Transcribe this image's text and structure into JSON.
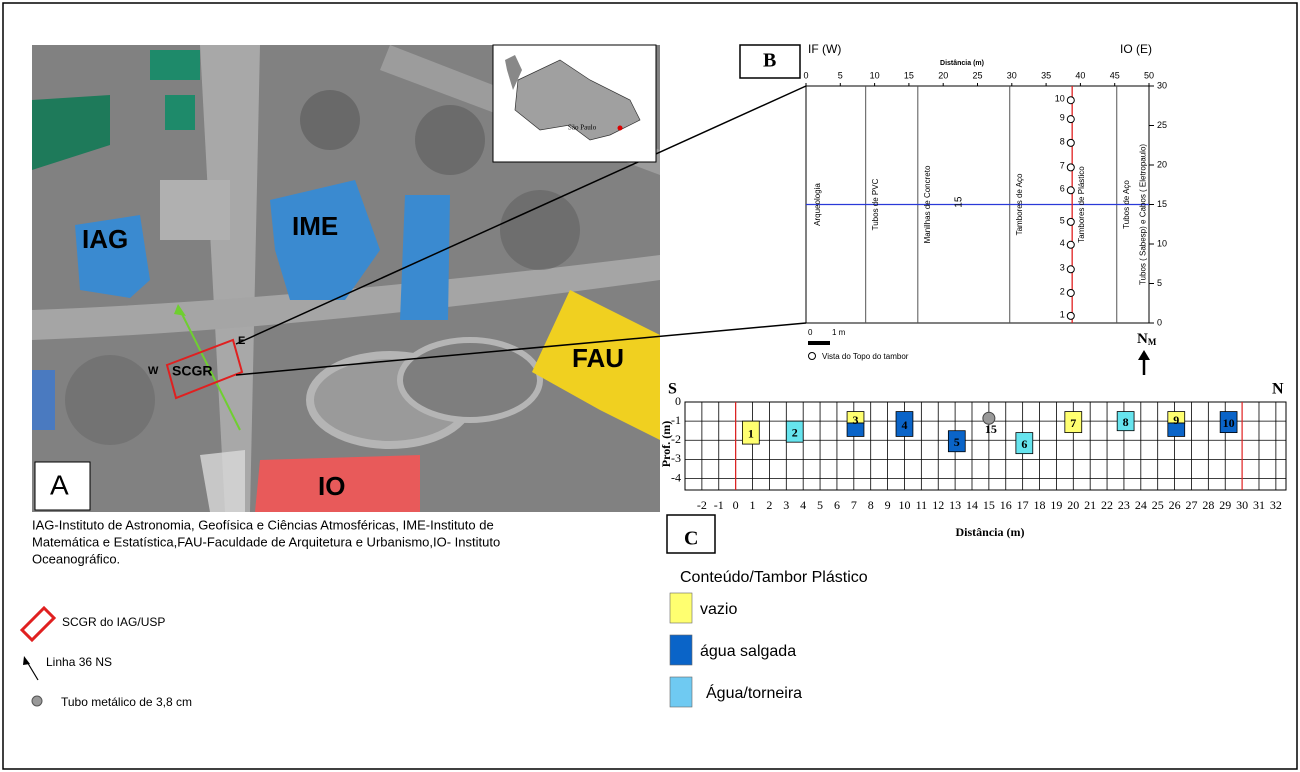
{
  "panel_a": {
    "letter": "A",
    "buildings": [
      "IAG",
      "IME",
      "FAU",
      "IO"
    ],
    "scgr": "SCGR",
    "west": "W",
    "east": "E",
    "inset_label": "São Paulo"
  },
  "caption": [
    "IAG-Instituto de Astronomia, Geofísica e Ciências Atmosféricas, IME-Instituto de",
    "Matemática e Estatística,FAU-Faculdade de Arquitetura e Urbanismo,IO- Instituto",
    "Oceanográfico."
  ],
  "map_legend": [
    "SCGR do IAG/USP",
    "Linha 36 NS",
    "Tubo metálico de 3,8 cm"
  ],
  "panel_b": {
    "letter": "B",
    "left_label": "IF (W)",
    "right_label": "IO (E)",
    "x_title": "Distância (m)",
    "xlim": [
      0,
      50
    ],
    "xticks": [
      0,
      5,
      10,
      15,
      20,
      25,
      30,
      35,
      40,
      45,
      50
    ],
    "ylim": [
      0,
      30
    ],
    "yticks": [
      0,
      5,
      10,
      15,
      20,
      25,
      30
    ],
    "sections": [
      {
        "label": "Arqueologia",
        "x": 1.7
      },
      {
        "label": "Tubos de PVC",
        "x": 10.2
      },
      {
        "label": "Manilhas de Concreto",
        "x": 17.8
      },
      {
        "label": "Tambores de Aço",
        "x": 31.2
      },
      {
        "label": "Tambores de Plástico",
        "x": 40.2
      },
      {
        "label": "Tubos de Aço",
        "x": 46.8
      },
      {
        "label": "Tubos ( Sabesp) e Cabos ( Eletropaulo)",
        "x": 49.2
      }
    ],
    "divisions": [
      8.7,
      16.3,
      29.7,
      45.3
    ],
    "red_line_x": 38.8,
    "blue_line_y": 15,
    "center_label": {
      "text": "15",
      "x": 22.3,
      "y": 15.3
    },
    "drums": [
      {
        "label": "1",
        "x": 38.6,
        "y": 0.9
      },
      {
        "label": "2",
        "x": 38.6,
        "y": 3.8
      },
      {
        "label": "3",
        "x": 38.6,
        "y": 6.8
      },
      {
        "label": "4",
        "x": 38.6,
        "y": 9.9
      },
      {
        "label": "5",
        "x": 38.6,
        "y": 12.8
      },
      {
        "label": "6",
        "x": 38.6,
        "y": 16.8
      },
      {
        "label": "7",
        "x": 38.6,
        "y": 19.7
      },
      {
        "label": "8",
        "x": 38.6,
        "y": 22.8
      },
      {
        "label": "9",
        "x": 38.6,
        "y": 25.8
      },
      {
        "label": "10",
        "x": 38.6,
        "y": 28.2
      }
    ],
    "scale": [
      "0",
      "1 m"
    ],
    "legend": "Vista do Topo do tambor",
    "north": "N",
    "north_sub": "M"
  },
  "chart_data": {
    "type": "bar",
    "letter": "C",
    "left_label": "S",
    "right_label": "N",
    "ylabel": "Prof. (m)",
    "xlabel": "Distância (m)",
    "xlim": [
      -3,
      32.6
    ],
    "xticks": [
      -2,
      -1,
      0,
      1,
      2,
      3,
      4,
      5,
      6,
      7,
      8,
      9,
      10,
      11,
      12,
      13,
      14,
      15,
      16,
      17,
      18,
      19,
      20,
      21,
      22,
      23,
      24,
      25,
      26,
      27,
      28,
      29,
      30,
      31,
      32
    ],
    "ylim": [
      -4.6,
      0
    ],
    "yticks": [
      0,
      -1,
      -2,
      -3,
      -4
    ],
    "grid": true,
    "red_lines": [
      0,
      30
    ],
    "drums": [
      {
        "label": "1",
        "x": 0.9,
        "segments": [
          {
            "top": -1.0,
            "bottom": -2.2,
            "color": "#ffff70"
          }
        ]
      },
      {
        "label": "2",
        "x": 3.5,
        "segments": [
          {
            "top": -1.0,
            "bottom": -2.1,
            "color": "#66e4ee"
          }
        ]
      },
      {
        "label": "3",
        "x": 7.1,
        "segments": [
          {
            "top": -0.5,
            "bottom": -1.1,
            "color": "#ffff70"
          },
          {
            "top": -1.1,
            "bottom": -1.8,
            "color": "#0a64c8"
          }
        ]
      },
      {
        "label": "4",
        "x": 10.0,
        "segments": [
          {
            "top": -0.5,
            "bottom": -1.8,
            "color": "#0a64c8"
          }
        ]
      },
      {
        "label": "5",
        "x": 13.1,
        "segments": [
          {
            "top": -1.5,
            "bottom": -2.6,
            "color": "#0a64c8"
          }
        ]
      },
      {
        "label": "6",
        "x": 17.1,
        "segments": [
          {
            "top": -1.6,
            "bottom": -2.7,
            "color": "#66e4ee"
          }
        ]
      },
      {
        "label": "7",
        "x": 20.0,
        "segments": [
          {
            "top": -0.5,
            "bottom": -1.6,
            "color": "#ffff70"
          }
        ]
      },
      {
        "label": "8",
        "x": 23.1,
        "segments": [
          {
            "top": -0.5,
            "bottom": -1.5,
            "color": "#66e4ee"
          }
        ]
      },
      {
        "label": "9",
        "x": 26.1,
        "segments": [
          {
            "top": -0.5,
            "bottom": -1.1,
            "color": "#ffff70"
          },
          {
            "top": -1.1,
            "bottom": -1.8,
            "color": "#0a64c8"
          }
        ]
      },
      {
        "label": "10",
        "x": 29.2,
        "segments": [
          {
            "top": -0.5,
            "bottom": -1.6,
            "color": "#0a64c8"
          }
        ]
      }
    ],
    "pipe": {
      "label": "15",
      "x": 15,
      "y": -0.85,
      "color": "#999999"
    },
    "legend_title": "Conteúdo/Tambor Plástico",
    "legend": [
      {
        "label": "vazio",
        "color": "#ffff70"
      },
      {
        "label": "água salgada",
        "color": "#0a64c8"
      },
      {
        "label": "Água/torneira",
        "color": "#6fcaf2"
      }
    ]
  }
}
